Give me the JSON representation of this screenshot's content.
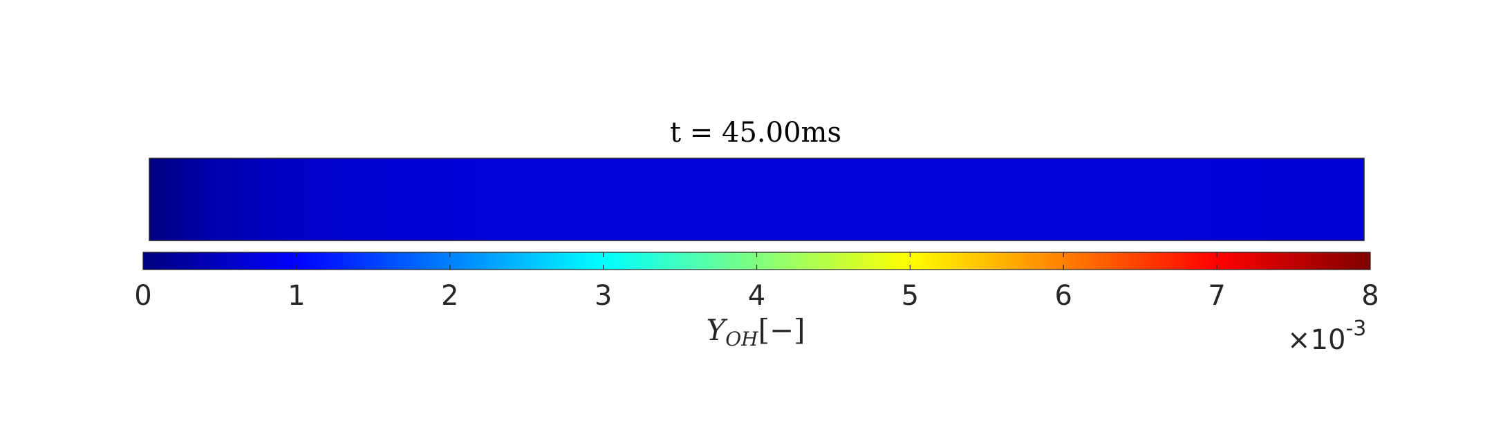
{
  "chart_data": {
    "type": "heatmap",
    "title": "t = 45.00ms",
    "colorbar": {
      "label_main": "Y",
      "label_sub": "OH",
      "label_unit": "[−]",
      "range": [
        0,
        8
      ],
      "ticks": [
        "0",
        "1",
        "2",
        "3",
        "4",
        "5",
        "6",
        "7",
        "8"
      ],
      "tick_values": [
        0,
        1,
        2,
        3,
        4,
        5,
        6,
        7,
        8
      ],
      "multiplier_base": "×10",
      "multiplier_exp": "-3",
      "colormap": "jet",
      "orientation": "horizontal",
      "location": "bottom"
    },
    "field": {
      "x_samples": [
        0,
        0.05,
        0.1,
        0.15,
        0.2,
        0.3,
        0.4,
        0.5,
        0.6,
        0.7,
        0.8,
        0.9,
        0.95,
        1.0
      ],
      "values": [
        0.0,
        0.35,
        0.5,
        0.6,
        0.65,
        0.7,
        0.7,
        0.7,
        0.7,
        0.7,
        0.7,
        0.68,
        0.66,
        0.65
      ]
    }
  }
}
